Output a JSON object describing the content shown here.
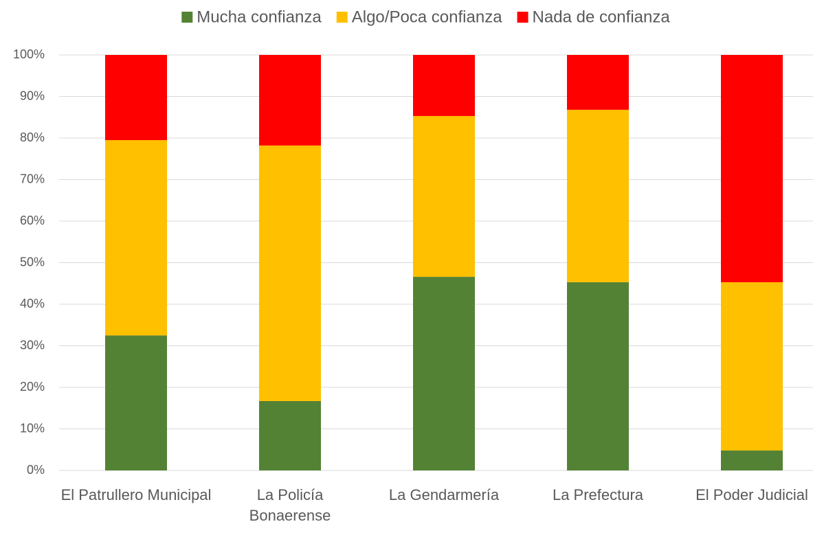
{
  "chart_data": {
    "type": "stacked_bar",
    "categories": [
      "El Patrullero Municipal",
      "La Policía Bonaerense",
      "La Gendarmería",
      "La Prefectura",
      "El Poder Judicial"
    ],
    "series": [
      {
        "name": "Mucha confianza",
        "color": "#548235",
        "values": [
          32.5,
          16.7,
          46.6,
          45.3,
          4.8
        ]
      },
      {
        "name": "Algo/Poca confianza",
        "color": "#ffc000",
        "values": [
          47,
          61.5,
          38.7,
          41.5,
          40.5
        ]
      },
      {
        "name": "Nada de confianza",
        "color": "#ff0000",
        "values": [
          20.5,
          21.8,
          14.7,
          13.2,
          54.7
        ]
      }
    ],
    "ylim": [
      0,
      100
    ],
    "yticks": [
      {
        "value": 0,
        "label": "0%"
      },
      {
        "value": 10,
        "label": "10%"
      },
      {
        "value": 20,
        "label": "20%"
      },
      {
        "value": 30,
        "label": "30%"
      },
      {
        "value": 40,
        "label": "40%"
      },
      {
        "value": 50,
        "label": "50%"
      },
      {
        "value": 60,
        "label": "60%"
      },
      {
        "value": 70,
        "label": "70%"
      },
      {
        "value": 80,
        "label": "80%"
      },
      {
        "value": 90,
        "label": "90%"
      },
      {
        "value": 100,
        "label": "100%"
      }
    ],
    "grid": true,
    "legend": "top"
  }
}
